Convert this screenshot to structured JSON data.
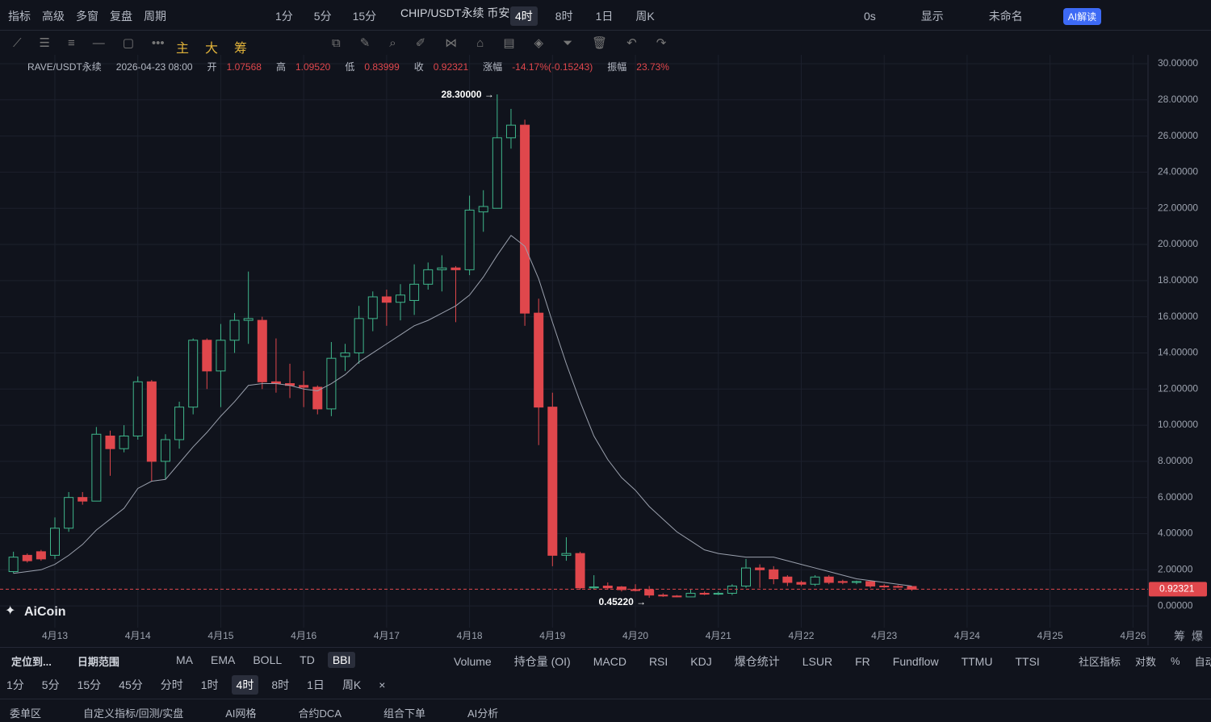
{
  "toolbar": {
    "left": [
      "指标",
      "高级",
      "多窗",
      "复盘",
      "周期"
    ],
    "periods": [
      "1分",
      "5分",
      "15分"
    ],
    "symbol": "CHIP/USDT永续 币安",
    "periods2": [
      "4时",
      "8时",
      "1日",
      "周K"
    ],
    "right": [
      "0s",
      "显示",
      "未命名",
      "AI解读"
    ]
  },
  "drawing_tools": [
    "主",
    "大",
    "筹"
  ],
  "info": {
    "symbol": "RAVE/USDT永续",
    "time": "2026-04-23 08:00",
    "fields": [
      {
        "label": "开",
        "value": "1.07568"
      },
      {
        "label": "高",
        "value": "1.09520"
      },
      {
        "label": "低",
        "value": "0.83999"
      },
      {
        "label": "收",
        "value": "0.92321"
      },
      {
        "label": "涨幅",
        "value": "-14.17%(-0.15243)"
      },
      {
        "label": "振幅",
        "value": "23.73%"
      }
    ]
  },
  "logo": "AiCoin",
  "chart_data": {
    "type": "candlestick",
    "x": [
      null,
      null,
      null,
      "4月13",
      null,
      null,
      null,
      null,
      null,
      "4月14",
      null,
      null,
      null,
      null,
      null,
      "4月15",
      null,
      null,
      null,
      null,
      null,
      "4月16",
      null,
      null,
      null,
      null,
      null,
      "4月17",
      null,
      null,
      null,
      null,
      null,
      "4月18",
      null,
      null,
      null,
      null,
      null,
      "4月19",
      null,
      null,
      null,
      null,
      null,
      "4月20",
      null,
      null,
      null,
      null,
      null,
      "4月21",
      null,
      null,
      null,
      null,
      null,
      "4月22",
      null,
      null,
      null,
      null,
      null,
      "4月23",
      null,
      null,
      null,
      null,
      null,
      "4月24",
      null,
      null,
      null,
      null,
      null,
      "4月25",
      null,
      null,
      null,
      null,
      null,
      "4月26",
      null
    ],
    "open": [
      1.9,
      2.8,
      3.0,
      2.8,
      4.3,
      6.0,
      5.8,
      9.4,
      8.7,
      9.4,
      12.4,
      8.0,
      9.2,
      11.0,
      14.7,
      13.0,
      14.7,
      15.8,
      15.8,
      12.4,
      12.3,
      12.2,
      12.1,
      10.9,
      13.8,
      14.0,
      15.9,
      17.1,
      16.8,
      16.9,
      17.8,
      18.6,
      18.7,
      18.6,
      21.8,
      22.0,
      25.9,
      26.6,
      16.2,
      11.0,
      2.8,
      2.9,
      1.0,
      1.1,
      1.05,
      0.9,
      0.9,
      0.6,
      0.55,
      0.5,
      0.7,
      0.65,
      0.7,
      1.1,
      2.1,
      2.0,
      1.6,
      1.3,
      1.2,
      1.6,
      1.35,
      1.3,
      1.35,
      1.1,
      1.08,
      1.07568,
      null,
      null,
      null,
      null,
      null,
      null,
      null,
      null,
      null,
      null,
      null,
      null,
      null,
      null,
      null,
      null,
      null
    ],
    "high": [
      3.0,
      2.9,
      3.1,
      4.9,
      6.3,
      6.3,
      9.9,
      9.7,
      10.0,
      12.7,
      12.5,
      9.5,
      11.3,
      14.8,
      14.8,
      15.6,
      16.2,
      18.5,
      16.0,
      14.8,
      13.4,
      13.0,
      12.2,
      14.6,
      14.5,
      16.6,
      17.4,
      17.5,
      17.8,
      18.9,
      19.0,
      19.4,
      18.8,
      22.7,
      23.0,
      28.3,
      27.5,
      26.9,
      17.0,
      11.8,
      3.8,
      3.0,
      1.7,
      1.3,
      1.1,
      1.2,
      1.1,
      0.7,
      0.6,
      0.9,
      0.8,
      0.8,
      1.2,
      2.6,
      2.3,
      2.2,
      1.7,
      1.4,
      1.7,
      1.7,
      1.45,
      1.4,
      1.4,
      1.2,
      1.15,
      1.0952,
      null,
      null,
      null,
      null,
      null,
      null,
      null,
      null,
      null,
      null,
      null,
      null,
      null,
      null,
      null,
      null,
      null
    ],
    "low": [
      1.8,
      2.4,
      2.5,
      2.6,
      4.1,
      5.6,
      5.8,
      7.2,
      8.5,
      9.2,
      6.9,
      7.0,
      8.7,
      10.6,
      12.0,
      11.0,
      14.0,
      14.5,
      12.0,
      11.8,
      11.5,
      11.0,
      10.6,
      10.5,
      13.0,
      13.4,
      15.2,
      15.5,
      15.8,
      16.1,
      17.5,
      17.4,
      15.7,
      18.3,
      20.7,
      22.0,
      25.3,
      15.5,
      8.9,
      2.2,
      2.5,
      0.9,
      0.9,
      0.9,
      0.8,
      0.8,
      0.4522,
      0.5,
      0.48,
      0.5,
      0.6,
      0.6,
      0.6,
      1.0,
      1.0,
      1.2,
      1.1,
      1.1,
      1.1,
      1.2,
      1.2,
      1.2,
      1.0,
      1.0,
      1.0,
      0.83999,
      null,
      null,
      null,
      null,
      null,
      null,
      null,
      null,
      null,
      null,
      null,
      null,
      null,
      null,
      null,
      null,
      null
    ],
    "close": [
      2.7,
      2.5,
      2.6,
      4.3,
      6.0,
      5.8,
      9.5,
      8.7,
      9.4,
      12.4,
      8.0,
      9.2,
      11.0,
      14.7,
      13.0,
      14.7,
      15.8,
      15.9,
      12.4,
      12.3,
      12.2,
      12.1,
      10.9,
      13.7,
      14.0,
      15.9,
      17.1,
      16.8,
      17.2,
      17.8,
      18.6,
      18.7,
      18.6,
      21.9,
      22.1,
      25.9,
      26.6,
      16.2,
      11.0,
      2.8,
      2.9,
      1.0,
      1.05,
      1.0,
      0.9,
      0.85,
      0.6,
      0.55,
      0.5,
      0.7,
      0.65,
      0.7,
      1.1,
      2.1,
      2.0,
      1.5,
      1.3,
      1.2,
      1.6,
      1.3,
      1.3,
      1.35,
      1.1,
      1.08,
      1.07,
      0.92321,
      null,
      null,
      null,
      null,
      null,
      null,
      null,
      null,
      null,
      null,
      null,
      null,
      null,
      null,
      null,
      null,
      null
    ],
    "bbi_values": [
      1.8,
      1.9,
      2.0,
      2.3,
      2.8,
      3.4,
      4.2,
      4.8,
      5.4,
      6.5,
      6.9,
      7.0,
      7.9,
      8.8,
      9.6,
      10.5,
      11.3,
      12.2,
      12.3,
      12.3,
      12.2,
      12.0,
      11.9,
      12.3,
      12.8,
      13.5,
      14.0,
      14.5,
      15.0,
      15.5,
      15.8,
      16.2,
      16.6,
      17.2,
      18.2,
      19.4,
      20.5,
      19.9,
      18.1,
      15.7,
      13.4,
      11.3,
      9.4,
      8.1,
      7.1,
      6.4,
      5.5,
      4.8,
      4.1,
      3.6,
      3.1,
      2.9,
      2.8,
      2.7,
      2.7,
      2.7,
      2.5,
      2.3,
      2.1,
      1.9,
      1.7,
      1.5,
      1.4,
      1.3,
      1.2,
      1.1,
      null,
      null,
      null,
      null,
      null,
      null,
      null,
      null,
      null,
      null,
      null,
      null,
      null,
      null,
      null,
      null,
      null
    ],
    "high_label": "28.30000 →",
    "low_label": "0.45220 →",
    "last_price_label": "0.92321",
    "up_color": "#3fb68b",
    "down_color": "#e0474c",
    "bbi_color": "#9aa0ad",
    "grid": true,
    "ylim": [
      -1.2,
      30.4
    ],
    "yticks": [
      {
        "value": 0,
        "label": "0.00000"
      },
      {
        "value": 2,
        "label": "2.00000"
      },
      {
        "value": 4,
        "label": "4.00000"
      },
      {
        "value": 6,
        "label": "6.00000"
      },
      {
        "value": 8,
        "label": "8.00000"
      },
      {
        "value": 10,
        "label": "10.00000"
      },
      {
        "value": 12,
        "label": "12.00000"
      },
      {
        "value": 14,
        "label": "14.00000"
      },
      {
        "value": 16,
        "label": "16.00000"
      },
      {
        "value": 18,
        "label": "18.00000"
      },
      {
        "value": 20,
        "label": "20.00000"
      },
      {
        "value": 22,
        "label": "22.00000"
      },
      {
        "value": 24,
        "label": "24.00000"
      },
      {
        "value": 26,
        "label": "26.00000"
      },
      {
        "value": 28,
        "label": "28.00000"
      },
      {
        "value": 30,
        "label": "30.00000"
      }
    ],
    "axis_corner": [
      "筹",
      "爆"
    ]
  },
  "indicators": {
    "tools": [
      "定位到...",
      "日期范围"
    ],
    "main": [
      "MA",
      "EMA",
      "BOLL",
      "TD",
      "BBI"
    ],
    "sub": [
      "Volume",
      "持仓量 (OI)",
      "MACD",
      "RSI",
      "KDJ",
      "爆仓统计",
      "LSUR",
      "FR",
      "Fundflow",
      "TTMU",
      "TTSI"
    ],
    "right": [
      "社区指标",
      "对数",
      "%",
      "自动"
    ]
  },
  "period_bar": [
    "1分",
    "5分",
    "15分",
    "45分",
    "分时",
    "1时",
    "4时",
    "8时",
    "1日",
    "周K",
    "×"
  ],
  "footer": [
    "委单区",
    "自定义指标/回测/实盘",
    "AI网格",
    "合约DCA",
    "组合下单",
    "AI分析"
  ]
}
